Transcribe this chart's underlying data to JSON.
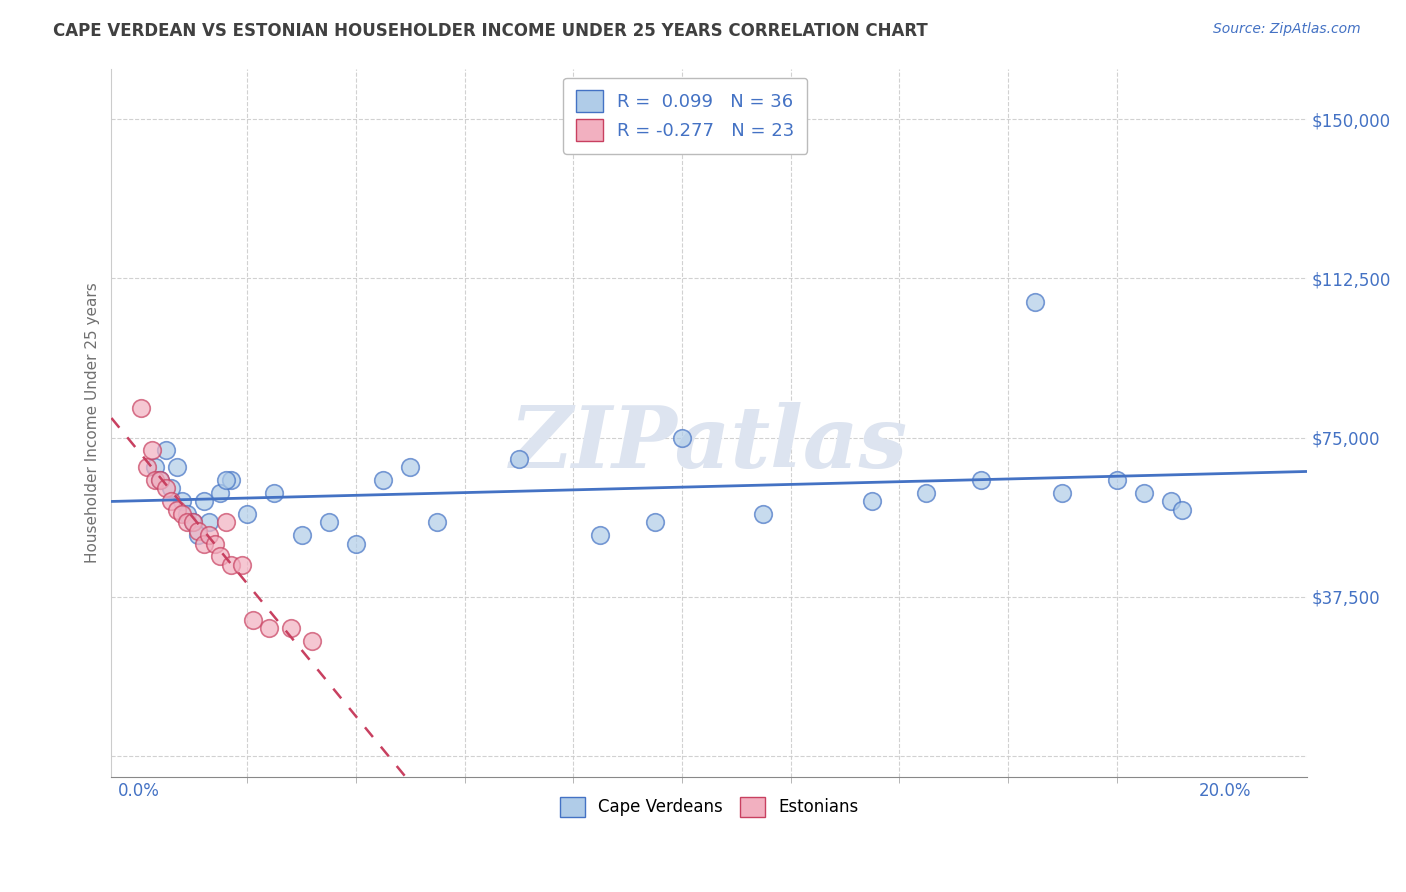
{
  "title": "CAPE VERDEAN VS ESTONIAN HOUSEHOLDER INCOME UNDER 25 YEARS CORRELATION CHART",
  "source": "Source: ZipAtlas.com",
  "ylabel": "Householder Income Under 25 years",
  "yticks": [
    0,
    37500,
    75000,
    112500,
    150000
  ],
  "ytick_labels": [
    "",
    "$37,500",
    "$75,000",
    "$112,500",
    "$150,000"
  ],
  "xtick_major": [
    0.0,
    20.0
  ],
  "xtick_major_labels": [
    "0.0%",
    "20.0%"
  ],
  "xtick_minor": [
    2.0,
    4.0,
    6.0,
    8.0,
    10.0,
    12.0,
    14.0,
    16.0,
    18.0
  ],
  "xlim": [
    -0.5,
    21.5
  ],
  "ylim": [
    -5000,
    162000
  ],
  "legend_r1": "R =  0.099   N = 36",
  "legend_r2": "R = -0.277   N = 23",
  "blue_face": "#b0cce8",
  "blue_edge": "#4472c4",
  "pink_face": "#f2b0c0",
  "pink_edge": "#c84060",
  "blue_line": "#4472c4",
  "pink_line": "#c84060",
  "grid_color": "#cccccc",
  "title_color": "#404040",
  "source_color": "#4472c4",
  "label_color": "#707070",
  "watermark_color": "#dde4f0",
  "blue_x": [
    0.3,
    0.5,
    0.7,
    0.8,
    0.9,
    1.0,
    1.1,
    1.2,
    1.3,
    1.5,
    1.7,
    2.0,
    2.5,
    3.0,
    3.5,
    4.5,
    5.0,
    5.5,
    7.0,
    8.5,
    9.5,
    10.0,
    11.5,
    13.5,
    14.5,
    15.5,
    16.5,
    17.0,
    18.0,
    18.5,
    19.0,
    19.2,
    0.4,
    0.6,
    1.6,
    4.0
  ],
  "blue_y": [
    68000,
    72000,
    68000,
    60000,
    57000,
    55000,
    52000,
    60000,
    55000,
    62000,
    65000,
    57000,
    62000,
    52000,
    55000,
    65000,
    68000,
    55000,
    70000,
    52000,
    55000,
    75000,
    57000,
    60000,
    62000,
    65000,
    107000,
    62000,
    65000,
    62000,
    60000,
    58000,
    65000,
    63000,
    65000,
    50000
  ],
  "pink_x": [
    0.05,
    0.15,
    0.25,
    0.3,
    0.4,
    0.5,
    0.6,
    0.7,
    0.8,
    0.9,
    1.0,
    1.1,
    1.2,
    1.3,
    1.4,
    1.5,
    1.6,
    1.7,
    1.9,
    2.1,
    2.4,
    2.8,
    3.2
  ],
  "pink_y": [
    82000,
    68000,
    72000,
    65000,
    65000,
    63000,
    60000,
    58000,
    57000,
    55000,
    55000,
    53000,
    50000,
    52000,
    50000,
    47000,
    55000,
    45000,
    45000,
    32000,
    30000,
    30000,
    27000
  ],
  "marker_size": 160
}
